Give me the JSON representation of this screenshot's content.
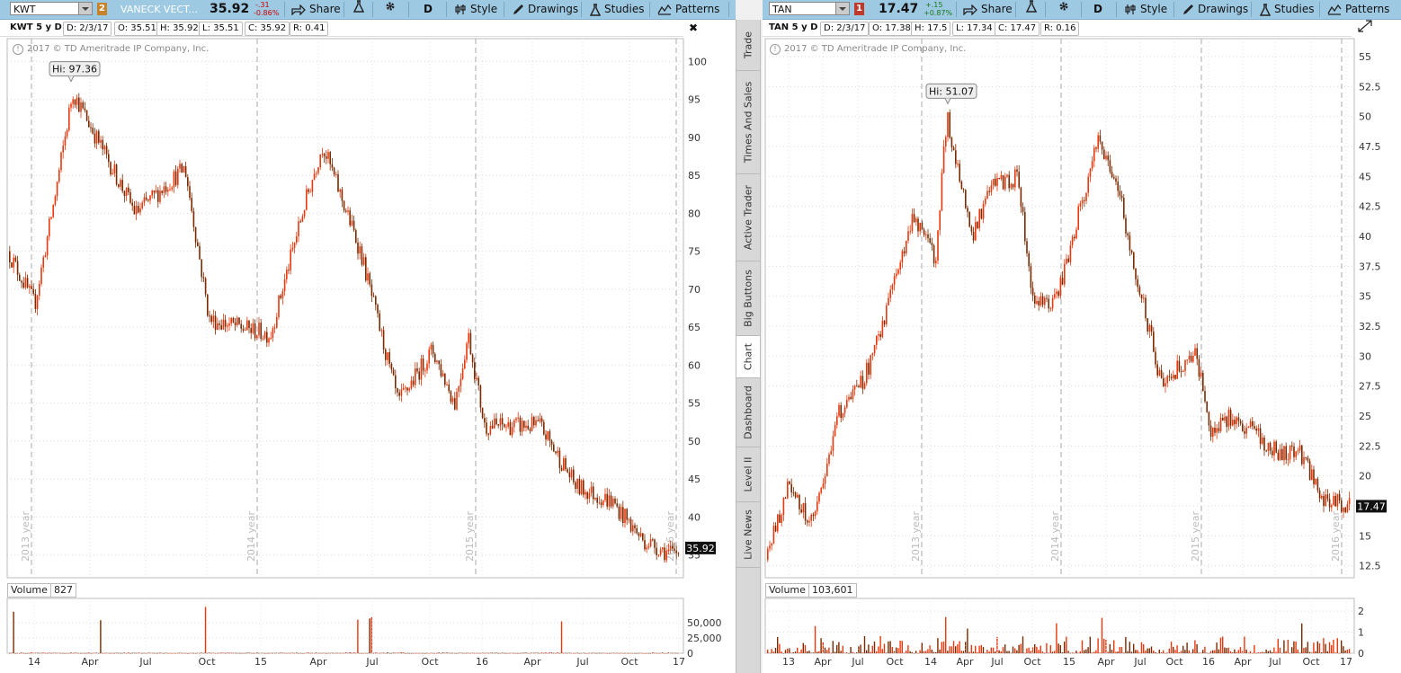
{
  "left": {
    "toolbar": {
      "symbol": "KWT",
      "link_badge": "2",
      "description": "VANECK VECT...",
      "price": "35.92",
      "change": "-.31",
      "change_pct": "-0.86%",
      "share_label": "Share",
      "aggregation": "D",
      "style_label": "Style",
      "drawings_label": "Drawings",
      "studies_label": "Studies",
      "patterns_label": "Patterns"
    },
    "info": {
      "title": "KWT 5 y D",
      "date": "D: 2/3/17",
      "open": "O: 35.51",
      "high": "H: 35.92",
      "low": "L: 35.51",
      "close": "C: 35.92",
      "range": "R: 0.41"
    },
    "copyright": "2017 © TD Ameritrade IP Company, Inc.",
    "hi_label": "Hi: 97.36",
    "last_label": "35.92",
    "volume_label": "Volume",
    "volume_value": "827",
    "volume_ticks": [
      "50,000",
      "25,000",
      "0"
    ],
    "year_labels": [
      "2013 year",
      "2014 year",
      "2015 year",
      "2016 year"
    ]
  },
  "right": {
    "toolbar": {
      "symbol": "TAN",
      "link_badge": "1",
      "price": "17.47",
      "change": "+.15",
      "change_pct": "+0.87%",
      "share_label": "Share",
      "aggregation": "D",
      "style_label": "Style",
      "drawings_label": "Drawings",
      "studies_label": "Studies",
      "patterns_label": "Patterns"
    },
    "info": {
      "title": "TAN 5 y D",
      "date": "D: 2/3/17",
      "open": "O: 17.38",
      "high": "H: 17.5",
      "low": "L: 17.34",
      "close": "C: 17.47",
      "range": "R: 0.16"
    },
    "copyright": "2017 © TD Ameritrade IP Company, Inc.",
    "hi_label": "Hi: 51.07",
    "last_label": "17.47",
    "volume_label": "Volume",
    "volume_value": "103,601",
    "volume_ticks": [
      "2",
      "1",
      "0"
    ],
    "year_labels": [
      "2013 year",
      "2014 year",
      "2015 year",
      "2016 year"
    ]
  },
  "side_tabs": [
    "Trade",
    "Times And Sales",
    "Active Trader",
    "Big Buttons",
    "Chart",
    "Dashboard",
    "Level II",
    "Live News"
  ],
  "colors": {
    "up": "#e8380d",
    "down": "#7a2a00",
    "toolbar": "#9ec9e3",
    "badge_left": "#c8822a",
    "badge_right": "#c0392b"
  },
  "chart_data": [
    {
      "type": "candlestick",
      "symbol": "KWT",
      "ylim": [
        32,
        103
      ],
      "yticks": [
        35,
        40,
        45,
        50,
        55,
        60,
        65,
        70,
        75,
        80,
        85,
        90,
        95,
        100
      ],
      "xticks": [
        "14",
        "Apr",
        "Jul",
        "Oct",
        "15",
        "Apr",
        "Jul",
        "Oct",
        "16",
        "Apr",
        "Jul",
        "Oct",
        "17"
      ],
      "high": 97.36,
      "last": 35.92,
      "path_x": [
        "2013-Q3",
        "2013-Q4",
        "2014-Jan",
        "2014-Mar",
        "2014-Jun",
        "2014-Aug",
        "2014-Oct",
        "2014-Dec",
        "2015-Mar",
        "2015-Apr",
        "2015-Jun",
        "2015-Aug",
        "2015-Sep",
        "2015-Nov",
        "2015-Dec",
        "2016-Jan",
        "2016-Mar",
        "2016-Jun",
        "2016-Aug",
        "2016-Oct",
        "2016-Dec",
        "2017-Feb"
      ],
      "path_close": [
        75,
        68,
        82,
        96,
        80,
        86,
        66,
        64,
        82,
        89,
        75,
        55,
        62,
        55,
        64,
        52,
        52,
        44,
        42,
        37,
        35,
        35.92
      ],
      "volume_ylim": [
        0,
        90000
      ]
    },
    {
      "type": "candlestick",
      "symbol": "TAN",
      "ylim": [
        11.5,
        56.5
      ],
      "yticks": [
        12.5,
        15,
        17.5,
        20,
        22.5,
        25,
        27.5,
        30,
        32.5,
        35,
        37.5,
        40,
        42.5,
        45,
        47.5,
        50,
        52.5,
        55
      ],
      "xticks": [
        "13",
        "Apr",
        "Jul",
        "Oct",
        "14",
        "Apr",
        "Jul",
        "Oct",
        "15",
        "Apr",
        "Jul",
        "Oct",
        "16",
        "Apr",
        "Jul",
        "Oct",
        "17"
      ],
      "high": 51.07,
      "last": 17.47,
      "path_x": [
        "2012-Nov",
        "2013-Jan",
        "2013-Mar",
        "2013-May",
        "2013-Jul",
        "2013-Sep",
        "2013-Nov",
        "2014-Jan",
        "2014-Feb",
        "2014-Apr",
        "2014-Jun",
        "2014-Aug",
        "2014-Oct",
        "2014-Dec",
        "2015-Mar",
        "2015-Apr",
        "2015-Jun",
        "2015-Aug",
        "2015-Oct",
        "2015-Dec",
        "2016-Feb",
        "2016-Jun",
        "2016-Aug",
        "2016-Nov",
        "2017-Feb"
      ],
      "path_close": [
        13,
        19,
        16,
        25,
        28,
        35,
        42,
        38,
        50,
        40,
        44,
        45,
        34,
        35,
        48,
        45,
        36,
        28,
        30,
        24,
        25,
        22,
        22,
        18,
        17.47
      ],
      "volume_ylim": [
        0,
        2.6
      ]
    }
  ]
}
